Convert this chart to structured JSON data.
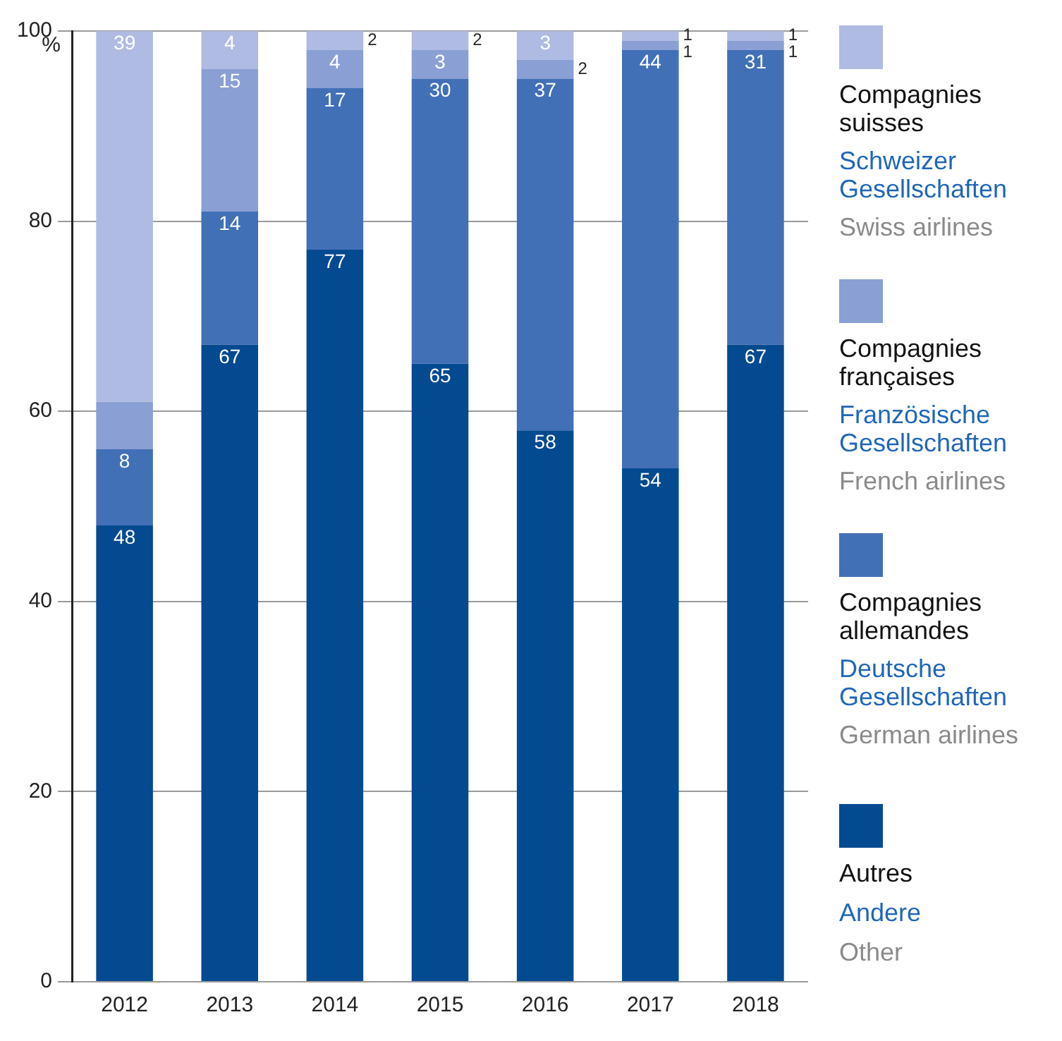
{
  "chart_data": {
    "type": "bar",
    "stacked": true,
    "ylabel": "%",
    "categories": [
      "2012",
      "2013",
      "2014",
      "2015",
      "2016",
      "2017",
      "2018"
    ],
    "series": [
      {
        "name": "Autres\nAndere\nOther",
        "color": "#044a91",
        "values": [
          48,
          67,
          77,
          65,
          58,
          54,
          67
        ],
        "value_labels": [
          "48",
          "67",
          "77",
          "65",
          "58",
          "54",
          "67"
        ]
      },
      {
        "name": "Compagnies\nallemandes\nDeutsche\nGesellschaften\nGerman airlines",
        "color": "#4270b7",
        "values": [
          8,
          14,
          17,
          30,
          37,
          44,
          31
        ],
        "value_labels": [
          "8",
          "14",
          "17",
          "30",
          "37",
          "44",
          "31"
        ]
      },
      {
        "name": "Compagnies\nfrançaises\nFranzösische\nGesellschaften\nFrench airlines",
        "color": "#8a9fd4",
        "values": [
          5,
          15,
          4,
          3,
          2,
          1,
          1
        ],
        "value_labels": [
          null,
          "15",
          "4",
          "3",
          "2",
          "1",
          "1"
        ]
      },
      {
        "name": "Compagnies\nsuisses\nSchweizer\nGesellschaften\nSwiss airlines",
        "color": "#afbbe2",
        "values": [
          39,
          4,
          2,
          2,
          3,
          1,
          1
        ],
        "value_labels": [
          "39",
          "4",
          "2",
          "2",
          "3",
          "1",
          "1"
        ]
      }
    ],
    "ylim": [
      0,
      100
    ],
    "yticks": [
      0,
      20,
      40,
      60,
      80,
      100
    ],
    "grid": "y",
    "legend": "right"
  }
}
